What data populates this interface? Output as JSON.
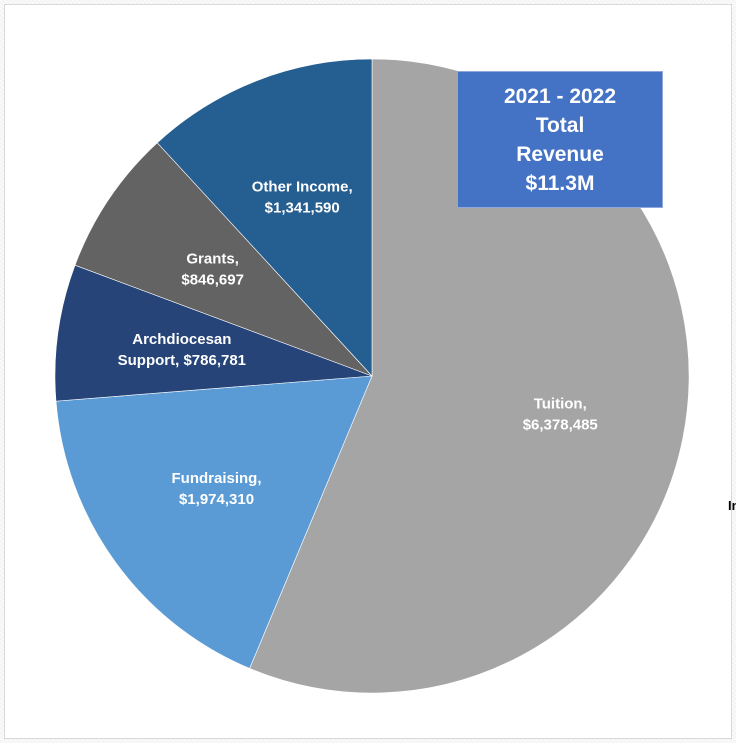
{
  "chart_data": {
    "type": "pie",
    "title_box": [
      "2021 - 2022",
      "Total",
      "Revenue",
      "$11.3M"
    ],
    "slices": [
      {
        "name": "Tuition",
        "value": 6378485,
        "label": [
          "Tuition,",
          "$6,378,485"
        ],
        "color": "#a5a5a5"
      },
      {
        "name": "Fundraising",
        "value": 1974310,
        "label": [
          "Fundraising,",
          "$1,974,310"
        ],
        "color": "#5b9bd5"
      },
      {
        "name": "Archdiocesan Support",
        "value": 786781,
        "label": [
          "Archdiocesan",
          "Support,  $786,781"
        ],
        "color": "#264478"
      },
      {
        "name": "Grants",
        "value": 846697,
        "label": [
          "Grants,",
          "$846,697"
        ],
        "color": "#636363"
      },
      {
        "name": "Other Income",
        "value": 1341590,
        "label": [
          "Other Income,",
          "$1,341,590"
        ],
        "color": "#255e91"
      }
    ],
    "start": "12 o'clock",
    "direction": "clockwise"
  },
  "fragment": "In"
}
